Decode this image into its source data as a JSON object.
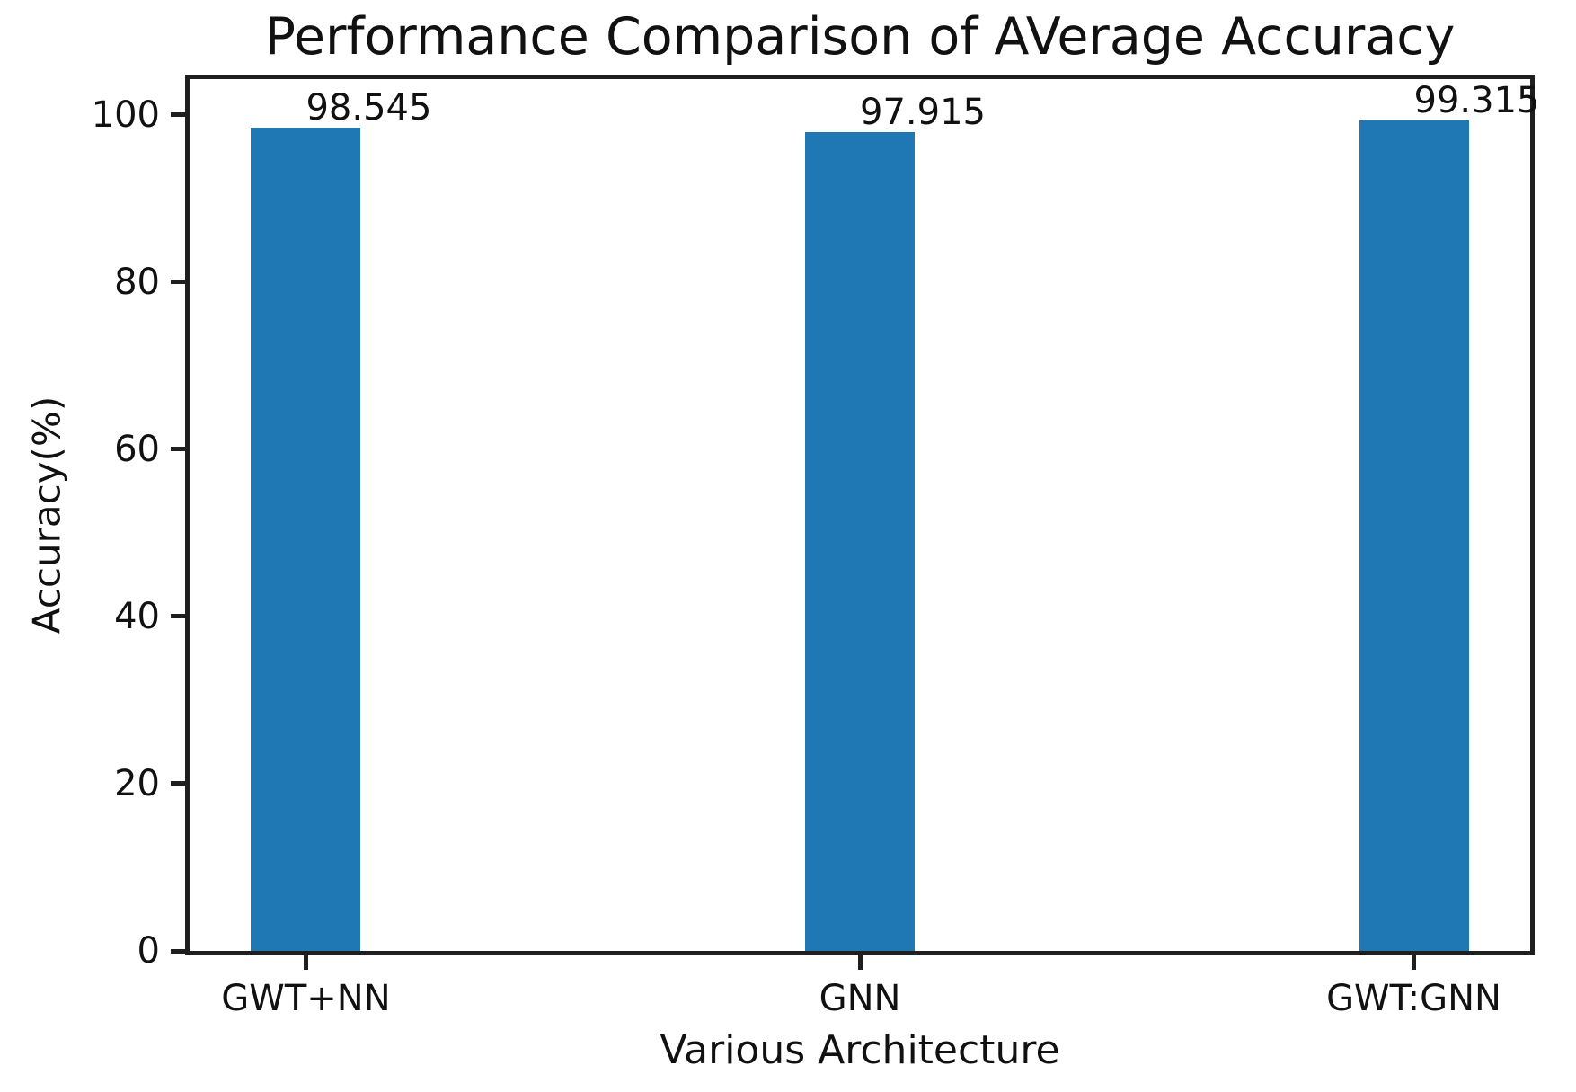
{
  "chart_data": {
    "type": "bar",
    "title": "Performance Comparison of AVerage Accuracy",
    "xlabel": "Various Architecture",
    "ylabel": "Accuracy(%)",
    "categories": [
      "GWT+NN",
      "GNN",
      "GWT:GNN"
    ],
    "values": [
      98.545,
      97.915,
      99.315
    ],
    "value_labels": [
      "98.545",
      "97.915",
      "99.315"
    ],
    "yticks": [
      0,
      20,
      40,
      60,
      80,
      100
    ],
    "ylim": [
      0,
      104.3
    ],
    "bar_color": "#1f77b4",
    "axis_color": "#1f1f1f",
    "text_color": "#111111",
    "grid": false,
    "legend": "none",
    "value_label_position": "above-bar-left-aligned-at-bar-center"
  }
}
